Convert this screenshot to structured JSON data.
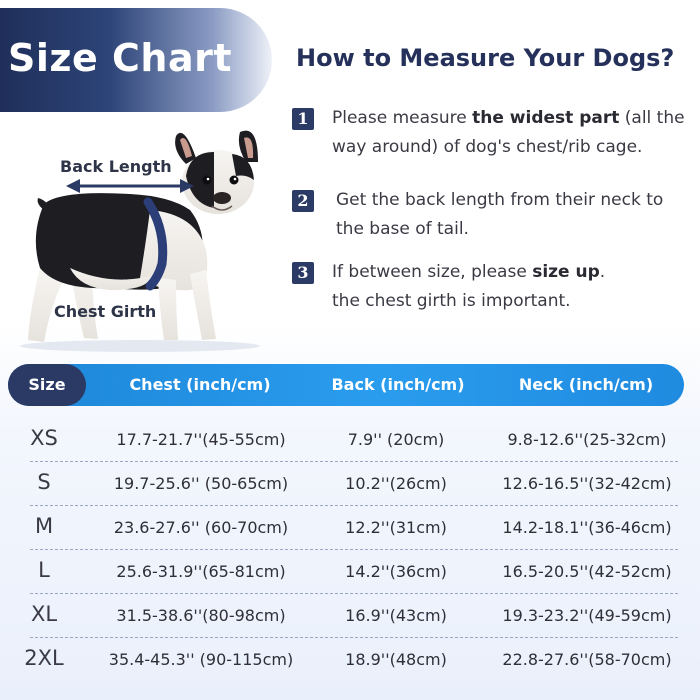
{
  "title": "Size Chart",
  "measure_heading": "How to Measure Your Dogs?",
  "steps": [
    {
      "number": "1",
      "pre": "Please measure ",
      "bold": "the widest part",
      "post": " (all the way around) of dog's chest/rib cage."
    },
    {
      "number": "2",
      "pre": "Get the back length from their neck to the base of tail.",
      "bold": "",
      "post": ""
    },
    {
      "number": "3",
      "pre": "If between size, please ",
      "bold": "size up",
      "post": ".",
      "line2": "the chest girth is  important."
    }
  ],
  "dog_labels": {
    "back_length": "Back Length",
    "chest_girth": "Chest Girth"
  },
  "table": {
    "headers": [
      "Size",
      "Chest (inch/cm)",
      "Back (inch/cm)",
      "Neck (inch/cm)"
    ],
    "rows": [
      [
        "XS",
        "17.7-21.7''(45-55cm)",
        "7.9'' (20cm)",
        "9.8-12.6''(25-32cm)"
      ],
      [
        "S",
        "19.7-25.6'' (50-65cm)",
        "10.2''(26cm)",
        "12.6-16.5''(32-42cm)"
      ],
      [
        "M",
        "23.6-27.6'' (60-70cm)",
        "12.2''(31cm)",
        "14.2-18.1''(36-46cm)"
      ],
      [
        "L",
        "25.6-31.9''(65-81cm)",
        "14.2''(36cm)",
        "16.5-20.5''(42-52cm)"
      ],
      [
        "XL",
        "31.5-38.6''(80-98cm)",
        "16.9''(43cm)",
        "19.3-23.2''(49-59cm)"
      ],
      [
        "2XL",
        "35.4-45.3'' (90-115cm)",
        "18.9''(48cm)",
        "22.8-27.6''(58-70cm)"
      ]
    ]
  },
  "colors": {
    "banner_dark": "#1f2f5a",
    "header_blue": "#1d86d8",
    "size_pill": "#2b3a64",
    "step_badge": "#2c3a66"
  }
}
